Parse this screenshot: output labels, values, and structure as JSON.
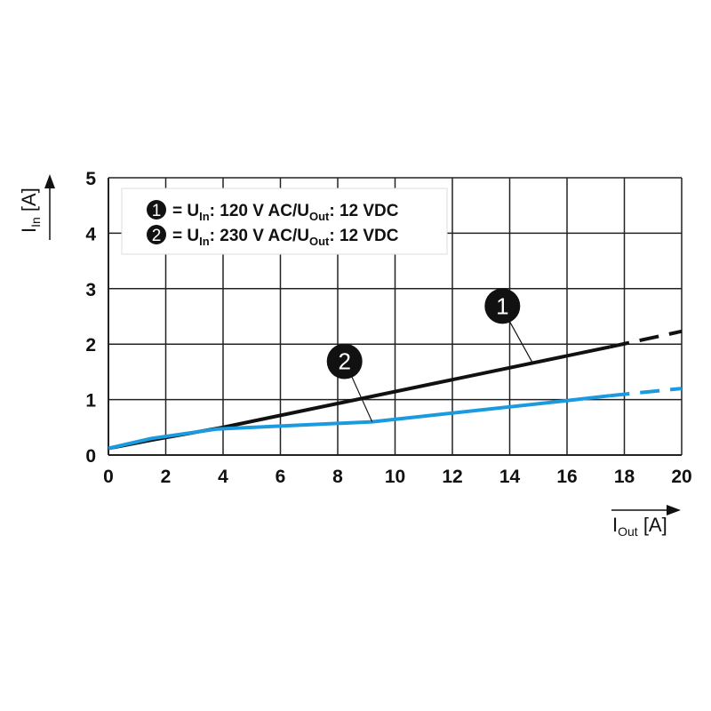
{
  "chart_data": {
    "type": "line",
    "title": "",
    "xlabel": {
      "main": "I",
      "sub": "Out",
      "unit": " [A]"
    },
    "ylabel": {
      "main": "I",
      "sub": "In",
      "unit": " [A]"
    },
    "xlim": [
      0,
      20
    ],
    "ylim": [
      0,
      5
    ],
    "xticks": [
      "0",
      "2",
      "4",
      "6",
      "8",
      "10",
      "12",
      "14",
      "16",
      "18",
      "20"
    ],
    "yticks": [
      "0",
      "1",
      "2",
      "3",
      "4",
      "5"
    ],
    "grid": true,
    "legend_position": "top-left",
    "legend": [
      {
        "marker": "1",
        "prefix": "= U",
        "sub1": "In",
        "mid": ": 120 V AC/U",
        "sub2": "Out",
        "suffix": ": 12 VDC"
      },
      {
        "marker": "2",
        "prefix": "= U",
        "sub1": "In",
        "mid": ": 230 V AC/U",
        "sub2": "Out",
        "suffix": ": 12 VDC"
      }
    ],
    "series": [
      {
        "marker": "1",
        "color": "#111111",
        "solid_until_x": 17.5,
        "points": [
          [
            0,
            0.12
          ],
          [
            1.5,
            0.27
          ],
          [
            4,
            0.5
          ],
          [
            17.5,
            1.95
          ],
          [
            20,
            2.23
          ]
        ],
        "callout_at": [
          14.8,
          1.66
        ]
      },
      {
        "marker": "2",
        "color": "#1a9be0",
        "solid_until_x": 17.5,
        "points": [
          [
            0,
            0.12
          ],
          [
            1.5,
            0.3
          ],
          [
            3.8,
            0.47
          ],
          [
            9.2,
            0.6
          ],
          [
            16,
            0.98
          ],
          [
            17.5,
            1.07
          ],
          [
            20,
            1.2
          ]
        ],
        "callout_at": [
          9.2,
          0.6
        ]
      }
    ]
  }
}
